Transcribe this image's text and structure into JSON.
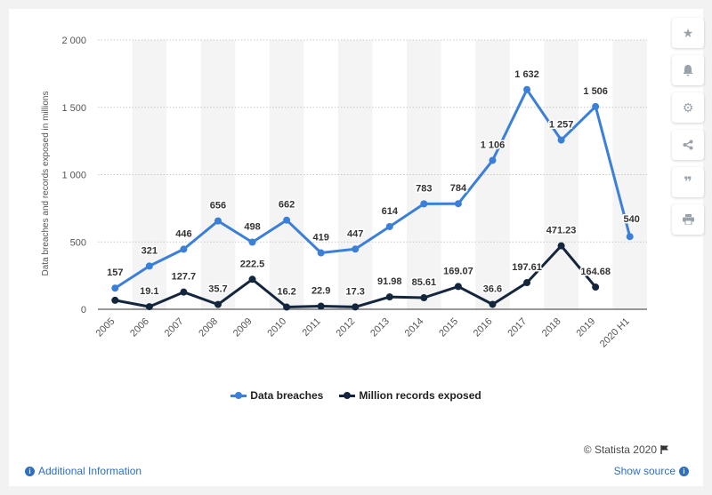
{
  "chart_data": {
    "type": "line",
    "title": "",
    "xlabel": "",
    "ylabel": "Data breaches and records exposed in millions",
    "ylim": [
      0,
      2000
    ],
    "yticks": [
      0,
      500,
      1000,
      1500,
      2000
    ],
    "ytick_labels": [
      "0",
      "500",
      "1 000",
      "1 500",
      "2 000"
    ],
    "grid": true,
    "legend": "bottom",
    "categories": [
      "2005",
      "2006",
      "2007",
      "2008",
      "2009",
      "2010",
      "2011",
      "2012",
      "2013",
      "2014",
      "2015",
      "2016",
      "2017",
      "2018",
      "2019",
      "2020 H1"
    ],
    "series": [
      {
        "name": "Data breaches",
        "color": "#3a7fd9",
        "values": [
          157,
          321,
          446,
          656,
          498,
          662,
          419,
          447,
          614,
          783,
          784,
          1106,
          1632,
          1257,
          1506,
          540
        ],
        "labels": [
          "157",
          "321",
          "446",
          "656",
          "498",
          "662",
          "419",
          "447",
          "614",
          "783",
          "784",
          "1 106",
          "1 632",
          "1 257",
          "1 506",
          "540"
        ]
      },
      {
        "name": "Million records exposed",
        "color": "#14263d",
        "values": [
          66.9,
          19.1,
          127.7,
          35.7,
          222.5,
          16.2,
          22.9,
          17.3,
          91.98,
          85.61,
          169.07,
          36.6,
          197.61,
          471.23,
          164.68,
          null
        ],
        "labels": [
          "",
          "19.1",
          "127.7",
          "35.7",
          "222.5",
          "16.2",
          "22.9",
          "17.3",
          "91.98",
          "85.61",
          "169.07",
          "36.6",
          "197.61",
          "471.23",
          "164.68",
          ""
        ]
      }
    ]
  },
  "legend": {
    "items": [
      {
        "label": "Data breaches",
        "color": "#3a7fd9"
      },
      {
        "label": "Million records exposed",
        "color": "#14263d"
      }
    ]
  },
  "footer": {
    "copyright": "© Statista 2020",
    "additional_info": "Additional Information",
    "show_source": "Show source"
  },
  "toolbar": {
    "icons": [
      "star-icon",
      "bell-icon",
      "gear-icon",
      "share-icon",
      "quote-icon",
      "print-icon"
    ]
  }
}
